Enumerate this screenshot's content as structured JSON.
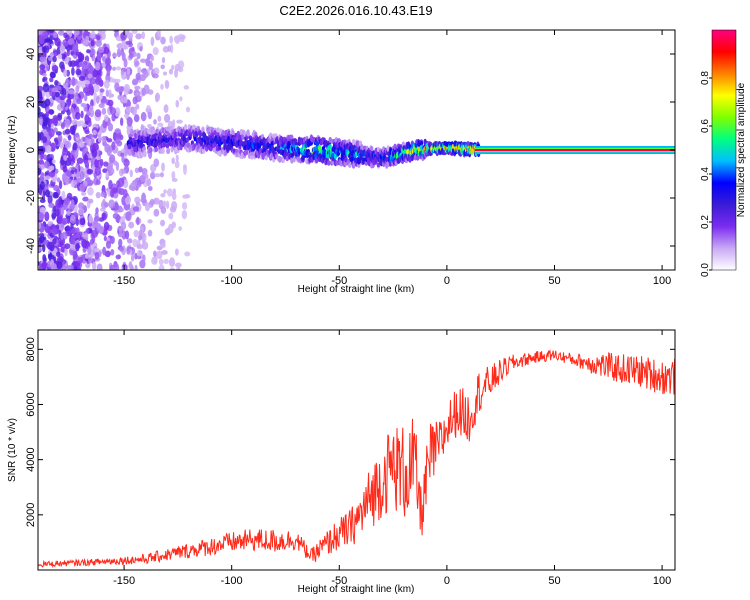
{
  "title": "C2E2.2026.016.10.43.E19",
  "chart_data": [
    {
      "type": "heatmap",
      "xlabel": "Height of straight line (km)",
      "ylabel": "Frequency (Hz)",
      "xlim": [
        -190,
        106
      ],
      "ylim": [
        -50,
        50
      ],
      "xticks": [
        -150,
        -100,
        -50,
        0,
        50,
        100
      ],
      "yticks": [
        -40,
        -20,
        0,
        20,
        40
      ],
      "colorbar": {
        "label": "Normalized spectral amplitude",
        "range": [
          0,
          1
        ],
        "ticks": [
          0.0,
          0.2,
          0.4,
          0.6,
          0.8
        ],
        "colors": [
          "#ffffff",
          "#c9a8f5",
          "#7b2cf0",
          "#3a1bd6",
          "#0000ff",
          "#00bfff",
          "#00ff80",
          "#80ff00",
          "#ffff00",
          "#ff8000",
          "#ff0000",
          "#ff0080"
        ]
      },
      "ridge": [
        {
          "x": -145,
          "y": 3.0,
          "a": 0.35
        },
        {
          "x": -120,
          "y": 5.0,
          "a": 0.35
        },
        {
          "x": -100,
          "y": 3.0,
          "a": 0.4
        },
        {
          "x": -80,
          "y": 1.0,
          "a": 0.4
        },
        {
          "x": -60,
          "y": 0.0,
          "a": 0.7
        },
        {
          "x": -45,
          "y": -1.5,
          "a": 0.55
        },
        {
          "x": -30,
          "y": -3.5,
          "a": 0.45
        },
        {
          "x": -15,
          "y": 0.0,
          "a": 0.8
        },
        {
          "x": 0,
          "y": 1.0,
          "a": 0.85
        },
        {
          "x": 15,
          "y": 0.0,
          "a": 1.0
        },
        {
          "x": 106,
          "y": 0.0,
          "a": 1.0
        }
      ]
    },
    {
      "type": "line",
      "xlabel": "Height of straight line (km)",
      "ylabel": "SNR (10 * v/v)",
      "xlim": [
        -190,
        106
      ],
      "ylim": [
        0,
        8700
      ],
      "xticks": [
        -150,
        -100,
        -50,
        0,
        50,
        100
      ],
      "yticks": [
        2000,
        4000,
        6000,
        8000
      ],
      "color": "#ff2a1a",
      "x": [
        -190,
        -160,
        -140,
        -120,
        -100,
        -90,
        -80,
        -70,
        -63,
        -58,
        -52,
        -45,
        -40,
        -35,
        -30,
        -25,
        -20,
        -15,
        -12,
        -8,
        -5,
        -2,
        0,
        5,
        10,
        15,
        20,
        25,
        30,
        40,
        50,
        60,
        70,
        80,
        90,
        100,
        106
      ],
      "values": [
        200,
        300,
        400,
        700,
        1000,
        1100,
        1050,
        1100,
        500,
        800,
        1200,
        1500,
        2000,
        2700,
        3300,
        3800,
        3500,
        3800,
        2000,
        4000,
        4400,
        4700,
        5200,
        5800,
        5500,
        6500,
        6800,
        7200,
        7500,
        7700,
        7800,
        7600,
        7450,
        7300,
        7200,
        7000,
        7000
      ],
      "amp": [
        100,
        120,
        180,
        280,
        380,
        420,
        440,
        380,
        250,
        450,
        550,
        700,
        900,
        1200,
        1400,
        1600,
        1800,
        1800,
        1000,
        1400,
        1000,
        900,
        900,
        900,
        1000,
        800,
        600,
        450,
        300,
        220,
        200,
        230,
        450,
        550,
        600,
        650,
        700
      ]
    }
  ]
}
